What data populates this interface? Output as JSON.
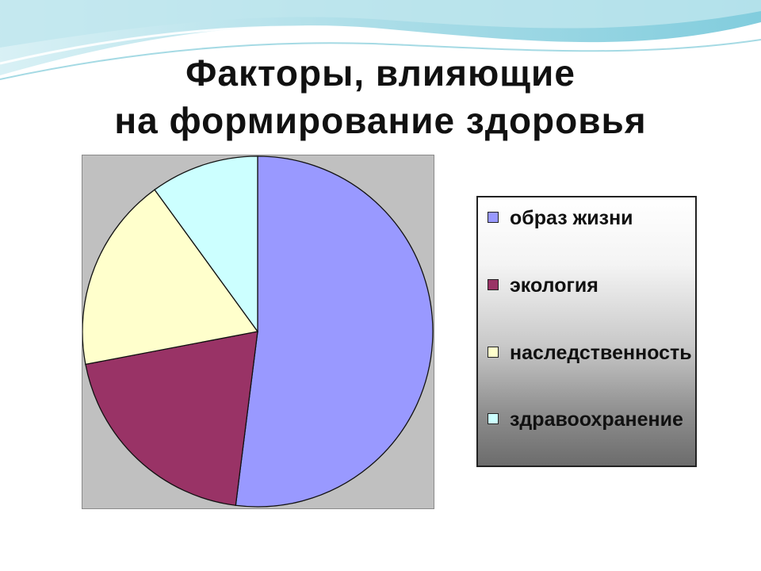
{
  "title_lines": [
    "Факторы, влияющие",
    "на формирование здоровья"
  ],
  "chart_data": {
    "type": "pie",
    "title": "Факторы, влияющие на формирование здоровья",
    "categories": [
      "образ жизни",
      "экология",
      "наследственность",
      "здравоохранение"
    ],
    "values": [
      52,
      20,
      18,
      10
    ],
    "unit": "%",
    "legend_position": "right",
    "colors": [
      "#9999ff",
      "#993366",
      "#ffffcc",
      "#ccffff"
    ]
  },
  "legend": {
    "items": [
      {
        "label": "образ жизни",
        "color": "#9999ff"
      },
      {
        "label": "экология",
        "color": "#993366"
      },
      {
        "label": "наследственность",
        "color": "#ffffcc"
      },
      {
        "label": "здравоохранение",
        "color": "#ccffff"
      }
    ]
  }
}
